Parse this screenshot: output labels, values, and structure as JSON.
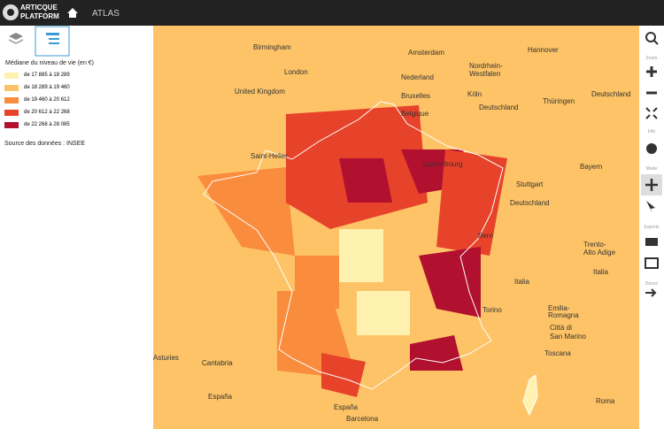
{
  "header": {
    "logo_top": "ARTICQUE",
    "logo_bottom": "PLATFORM",
    "nav": "ATLAS"
  },
  "legend": {
    "title": "Médiane du niveau de vie (en €)",
    "items": [
      {
        "label": "de 17 885 à 18 289",
        "color": "#fff2b0"
      },
      {
        "label": "de 18 289 à 19 460",
        "color": "#fdc366"
      },
      {
        "label": "de 19 460 à 20 612",
        "color": "#f98d3d"
      },
      {
        "label": "de 20 612 à 22 268",
        "color": "#e7432b"
      },
      {
        "label": "de 22 268 à 28 085",
        "color": "#b1102f"
      }
    ],
    "source": "Source des données : INSEE"
  },
  "toolbar": [
    "Zoom",
    "Info",
    "Mode",
    "Exports",
    "Décon"
  ],
  "map": {
    "labels": [
      "Birmingham",
      "London",
      "United Kingdom",
      "Amsterdam",
      "Hannover",
      "Nederland",
      "Nordrhein-",
      "Westfalen",
      "Bruxelles",
      "Köln",
      "Deutschland",
      "Thüringen",
      "Belgique",
      "Deutschland",
      "Luxembourg",
      "Saint-Helier",
      "Stuttgart",
      "Bayern",
      "Deutschland",
      "Bern",
      "Trento-",
      "Alto Adige",
      "Italia",
      "Italia",
      "Torino",
      "Emilia-",
      "Romagna",
      "Città di",
      "San Marino",
      "Toscana",
      "Asturies",
      "Cantabria",
      "España",
      "España",
      "Barcelona",
      "Roma"
    ]
  }
}
